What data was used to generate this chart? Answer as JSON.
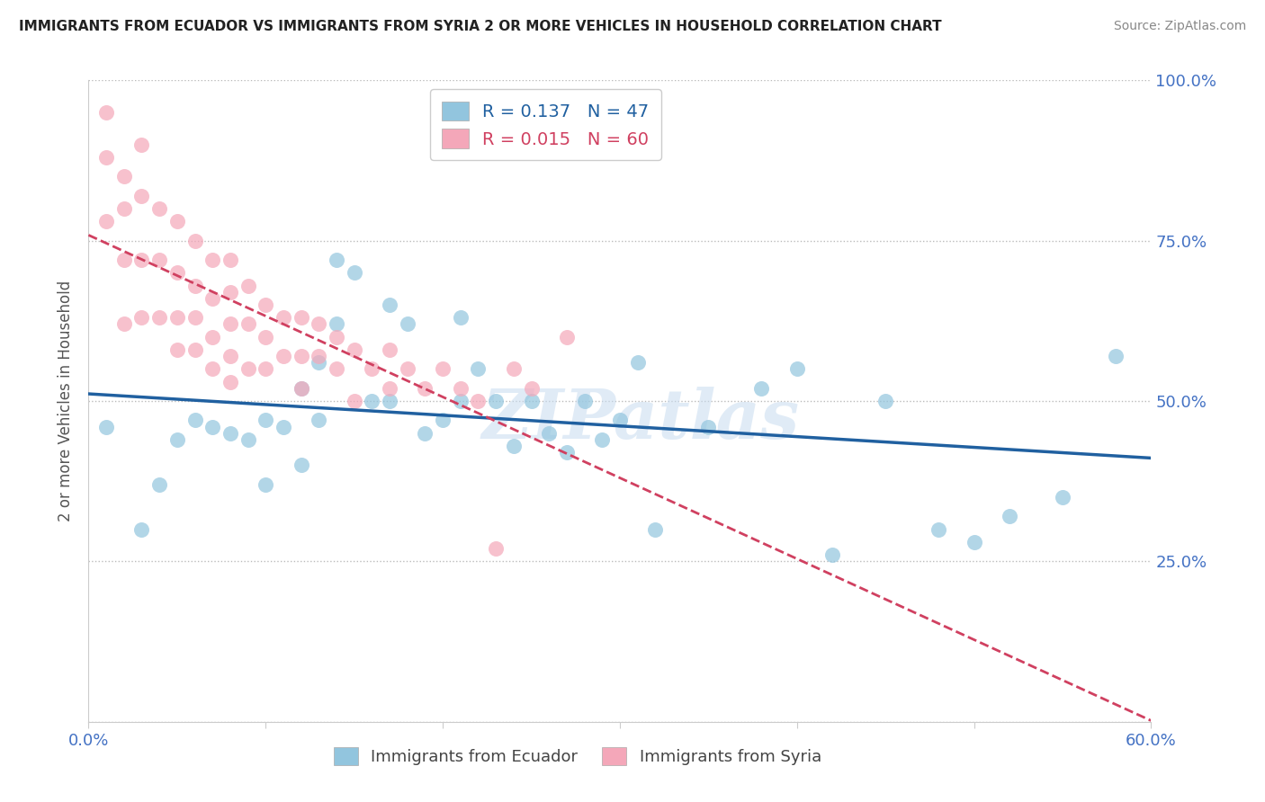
{
  "title": "IMMIGRANTS FROM ECUADOR VS IMMIGRANTS FROM SYRIA 2 OR MORE VEHICLES IN HOUSEHOLD CORRELATION CHART",
  "source": "Source: ZipAtlas.com",
  "ylabel": "2 or more Vehicles in Household",
  "xmin": 0.0,
  "xmax": 0.6,
  "ymin": 0.0,
  "ymax": 1.0,
  "ecuador_R": "0.137",
  "ecuador_N": "47",
  "syria_R": "0.015",
  "syria_N": "60",
  "ecuador_color": "#92C5DE",
  "syria_color": "#F4A7B9",
  "ecuador_line_color": "#2060A0",
  "syria_line_color": "#D04060",
  "watermark": "ZIPatlas",
  "ecuador_x": [
    0.01,
    0.03,
    0.04,
    0.05,
    0.06,
    0.07,
    0.08,
    0.09,
    0.1,
    0.1,
    0.11,
    0.12,
    0.12,
    0.13,
    0.13,
    0.14,
    0.14,
    0.15,
    0.16,
    0.17,
    0.17,
    0.18,
    0.19,
    0.2,
    0.21,
    0.21,
    0.22,
    0.23,
    0.24,
    0.25,
    0.26,
    0.27,
    0.28,
    0.29,
    0.3,
    0.31,
    0.32,
    0.35,
    0.38,
    0.4,
    0.42,
    0.45,
    0.48,
    0.5,
    0.52,
    0.55,
    0.58
  ],
  "ecuador_y": [
    0.46,
    0.3,
    0.37,
    0.44,
    0.47,
    0.46,
    0.45,
    0.44,
    0.47,
    0.37,
    0.46,
    0.52,
    0.4,
    0.56,
    0.47,
    0.72,
    0.62,
    0.7,
    0.5,
    0.65,
    0.5,
    0.62,
    0.45,
    0.47,
    0.63,
    0.5,
    0.55,
    0.5,
    0.43,
    0.5,
    0.45,
    0.42,
    0.5,
    0.44,
    0.47,
    0.56,
    0.3,
    0.46,
    0.52,
    0.55,
    0.26,
    0.5,
    0.3,
    0.28,
    0.32,
    0.35,
    0.57
  ],
  "syria_x": [
    0.01,
    0.01,
    0.01,
    0.02,
    0.02,
    0.02,
    0.02,
    0.03,
    0.03,
    0.03,
    0.03,
    0.04,
    0.04,
    0.04,
    0.05,
    0.05,
    0.05,
    0.05,
    0.06,
    0.06,
    0.06,
    0.06,
    0.07,
    0.07,
    0.07,
    0.07,
    0.08,
    0.08,
    0.08,
    0.08,
    0.08,
    0.09,
    0.09,
    0.09,
    0.1,
    0.1,
    0.1,
    0.11,
    0.11,
    0.12,
    0.12,
    0.12,
    0.13,
    0.13,
    0.14,
    0.14,
    0.15,
    0.15,
    0.16,
    0.17,
    0.17,
    0.18,
    0.19,
    0.2,
    0.21,
    0.22,
    0.23,
    0.24,
    0.25,
    0.27
  ],
  "syria_y": [
    0.95,
    0.88,
    0.78,
    0.85,
    0.8,
    0.72,
    0.62,
    0.9,
    0.82,
    0.72,
    0.63,
    0.8,
    0.72,
    0.63,
    0.78,
    0.7,
    0.63,
    0.58,
    0.75,
    0.68,
    0.63,
    0.58,
    0.72,
    0.66,
    0.6,
    0.55,
    0.72,
    0.67,
    0.62,
    0.57,
    0.53,
    0.68,
    0.62,
    0.55,
    0.65,
    0.6,
    0.55,
    0.63,
    0.57,
    0.63,
    0.57,
    0.52,
    0.62,
    0.57,
    0.6,
    0.55,
    0.58,
    0.5,
    0.55,
    0.58,
    0.52,
    0.55,
    0.52,
    0.55,
    0.52,
    0.5,
    0.27,
    0.55,
    0.52,
    0.6
  ]
}
